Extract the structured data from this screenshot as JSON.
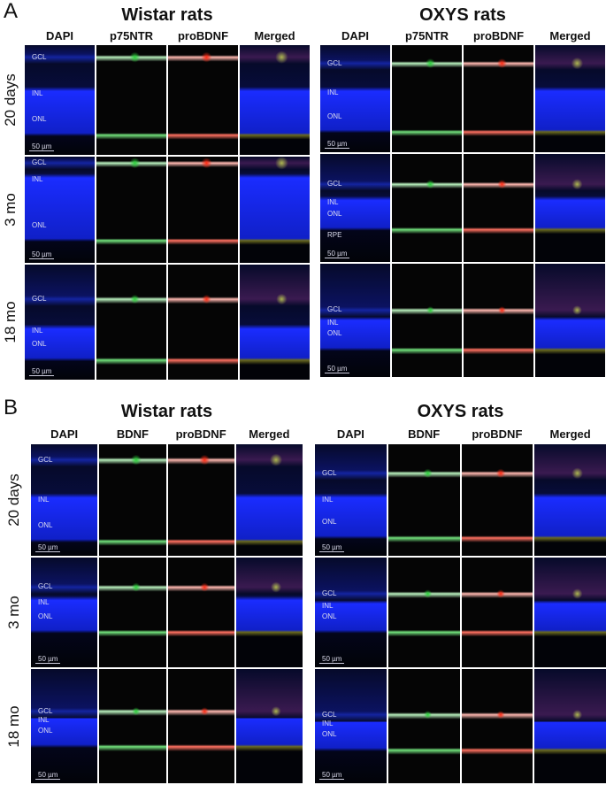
{
  "panels": [
    {
      "label": "A",
      "groups": [
        {
          "title": "Wistar rats",
          "columns": [
            "DAPI",
            "p75NTR",
            "proBDNF",
            "Merged"
          ],
          "rows": [
            {
              "label": "20 days",
              "layers": [
                "GCL",
                "INL",
                "ONL"
              ]
            },
            {
              "label": "3 mo",
              "layers": [
                "GCL",
                "INL",
                "ONL"
              ]
            },
            {
              "label": "18 mo",
              "layers": [
                "GCL",
                "INL",
                "ONL"
              ]
            }
          ]
        },
        {
          "title": "OXYS rats",
          "columns": [
            "DAPI",
            "p75NTR",
            "proBDNF",
            "Merged"
          ],
          "rows": [
            {
              "label": "20 days",
              "layers": [
                "GCL",
                "INL",
                "ONL"
              ]
            },
            {
              "label": "3 mo",
              "layers": [
                "GCL",
                "INL",
                "ONL",
                "RPE"
              ]
            },
            {
              "label": "18 mo",
              "layers": [
                "GCL",
                "INL",
                "ONL"
              ]
            }
          ]
        }
      ]
    },
    {
      "label": "B",
      "groups": [
        {
          "title": "Wistar rats",
          "columns": [
            "DAPI",
            "BDNF",
            "proBDNF",
            "Merged"
          ],
          "rows": [
            {
              "label": "20 days",
              "layers": [
                "GCL",
                "INL",
                "ONL"
              ]
            },
            {
              "label": "3 mo",
              "layers": [
                "GCL",
                "INL",
                "ONL"
              ]
            },
            {
              "label": "18 mo",
              "layers": [
                "GCL",
                "INL",
                "ONL"
              ]
            }
          ]
        },
        {
          "title": "OXYS rats",
          "columns": [
            "DAPI",
            "BDNF",
            "proBDNF",
            "Merged"
          ],
          "rows": [
            {
              "label": "20 days",
              "layers": [
                "GCL",
                "INL",
                "ONL"
              ]
            },
            {
              "label": "3 mo",
              "layers": [
                "GCL",
                "INL",
                "ONL"
              ]
            },
            {
              "label": "18 mo",
              "layers": [
                "GCL",
                "INL",
                "ONL"
              ]
            }
          ]
        }
      ]
    }
  ],
  "scale_bar": "50 µm",
  "channel_colors": {
    "DAPI": "#1a2cff",
    "green": "#2bd23a",
    "red": "#ff2a12"
  }
}
